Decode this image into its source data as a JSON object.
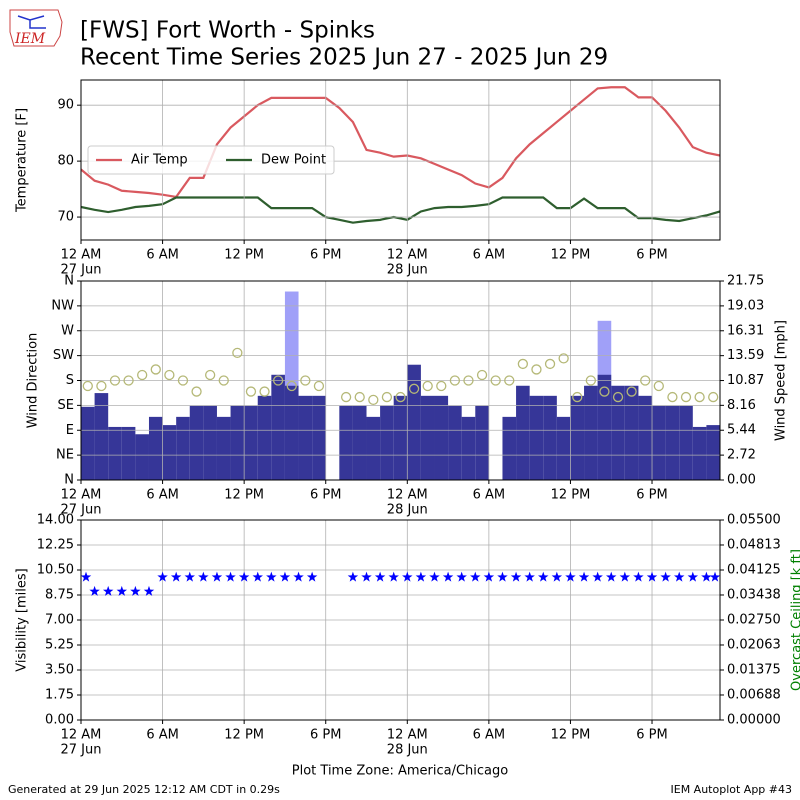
{
  "logo": "IEM",
  "title": "[FWS] Fort Worth - Spinks",
  "subtitle": "Recent Time Series 2025 Jun 27 - 2025 Jun 29",
  "xlabel": "Plot Time Zone: America/Chicago",
  "footer_left": "Generated at 29 Jun 2025 12:12 AM CDT in 0.29s",
  "footer_right": "IEM Autoplot App #43",
  "chart_data": [
    {
      "type": "line",
      "ylabel": "Temperature [F]",
      "grid": true,
      "legend": "center left",
      "x": [
        0,
        1,
        2,
        3,
        4,
        5,
        6,
        7,
        8,
        9,
        10,
        11,
        12,
        13,
        14,
        15,
        16,
        17,
        18,
        19,
        20,
        21,
        22,
        23,
        24,
        25,
        26,
        27,
        28,
        29,
        30,
        31,
        32,
        33,
        34,
        35,
        36,
        37,
        38,
        39,
        40,
        41,
        42,
        43,
        44,
        45,
        46,
        47
      ],
      "xlim": [
        0,
        47
      ],
      "xticks": [
        {
          "value": 0,
          "label": "12 AM",
          "sublabel": "27 Jun"
        },
        {
          "value": 6,
          "label": "6 AM"
        },
        {
          "value": 12,
          "label": "12 PM"
        },
        {
          "value": 18,
          "label": "6 PM"
        },
        {
          "value": 24,
          "label": "12 AM",
          "sublabel": "28 Jun"
        },
        {
          "value": 30,
          "label": "6 AM"
        },
        {
          "value": 36,
          "label": "12 PM"
        },
        {
          "value": 42,
          "label": "6 PM"
        }
      ],
      "ylim": [
        65.9,
        94.5
      ],
      "yticks": [
        70,
        80,
        90
      ],
      "series": [
        {
          "name": "Air Temp",
          "color": "#d9595f",
          "values": [
            78.5,
            76.5,
            75.8,
            74.7,
            74.5,
            74.3,
            74,
            73.6,
            77,
            77,
            83,
            86,
            88,
            90,
            91.3,
            91.3,
            91.3,
            91.3,
            91.3,
            89.5,
            87,
            82,
            81.5,
            80.8,
            81,
            80.5,
            79.5,
            78.5,
            77.5,
            76,
            75.3,
            77,
            80.5,
            83,
            85,
            87,
            89,
            91,
            93,
            93.2,
            93.2,
            91.4,
            91.4,
            89,
            86,
            82.5,
            81.5,
            81
          ]
        },
        {
          "name": "Dew Point",
          "color": "#2e5e2e",
          "values": [
            71.8,
            71.3,
            70.9,
            71.3,
            71.8,
            72,
            72.3,
            73.5,
            73.5,
            73.5,
            73.5,
            73.5,
            73.5,
            73.5,
            71.6,
            71.6,
            71.6,
            71.6,
            70,
            69.5,
            69,
            69.3,
            69.5,
            70,
            69.5,
            71,
            71.6,
            71.8,
            71.8,
            72,
            72.3,
            73.5,
            73.5,
            73.5,
            73.5,
            71.6,
            71.6,
            73.3,
            71.6,
            71.6,
            71.6,
            69.8,
            69.8,
            69.5,
            69.3,
            69.8,
            70.3,
            71
          ]
        }
      ]
    },
    {
      "type": "wind",
      "ylabel": "Wind Direction",
      "y2label": "Wind Speed [mph]",
      "grid": true,
      "x": [
        0,
        1,
        2,
        3,
        4,
        5,
        6,
        7,
        8,
        9,
        10,
        11,
        12,
        13,
        14,
        15,
        16,
        17,
        18,
        19,
        20,
        21,
        22,
        23,
        24,
        25,
        26,
        27,
        28,
        29,
        30,
        31,
        32,
        33,
        34,
        35,
        36,
        37,
        38,
        39,
        40,
        41,
        42,
        43,
        44,
        45,
        46
      ],
      "xlim": [
        0,
        47
      ],
      "xticks": [
        {
          "value": 0,
          "label": "12 AM",
          "sublabel": "27 Jun"
        },
        {
          "value": 6,
          "label": "6 AM"
        },
        {
          "value": 12,
          "label": "12 PM"
        },
        {
          "value": 18,
          "label": "6 PM"
        },
        {
          "value": 24,
          "label": "12 AM",
          "sublabel": "28 Jun"
        },
        {
          "value": 30,
          "label": "6 AM"
        },
        {
          "value": 36,
          "label": "12 PM"
        },
        {
          "value": 42,
          "label": "6 PM"
        }
      ],
      "ylim": [
        0,
        360
      ],
      "yticks": [
        {
          "value": 0,
          "label": "N"
        },
        {
          "value": 45,
          "label": "NE"
        },
        {
          "value": 90,
          "label": "E"
        },
        {
          "value": 135,
          "label": "SE"
        },
        {
          "value": 180,
          "label": "S"
        },
        {
          "value": 225,
          "label": "SW"
        },
        {
          "value": 270,
          "label": "W"
        },
        {
          "value": 315,
          "label": "NW"
        },
        {
          "value": 360,
          "label": "N"
        }
      ],
      "y2lim": [
        0,
        21.75
      ],
      "y2ticks": [
        {
          "value": 0,
          "label": "0.00"
        },
        2.72,
        5.44,
        8.16,
        10.87,
        13.59,
        16.31,
        19.03,
        21.75
      ],
      "series": [
        {
          "kind": "bar",
          "axis": "y2",
          "color": "#a0a0f8",
          "values": [
            null,
            null,
            null,
            null,
            null,
            null,
            null,
            null,
            null,
            null,
            null,
            null,
            null,
            null,
            null,
            20.6,
            null,
            null,
            null,
            null,
            null,
            null,
            null,
            null,
            null,
            null,
            null,
            null,
            null,
            null,
            null,
            null,
            null,
            null,
            null,
            null,
            null,
            null,
            17.4,
            null,
            null,
            null,
            null,
            null,
            null,
            null,
            null
          ]
        },
        {
          "kind": "bar",
          "axis": "y2",
          "color": "#363698",
          "values": [
            8,
            9.5,
            5.8,
            5.8,
            5,
            6.9,
            6,
            6.9,
            8.1,
            8.1,
            6.9,
            8.1,
            8.1,
            9.2,
            11.5,
            10.3,
            9.2,
            9.2,
            null,
            8.1,
            8.1,
            6.9,
            8.1,
            9.2,
            12.6,
            9.2,
            9.2,
            8.1,
            6.9,
            8.1,
            null,
            6.9,
            10.3,
            9.2,
            9.2,
            6.9,
            9.2,
            10.3,
            11.5,
            10.3,
            10.3,
            9.2,
            8.1,
            8.1,
            8.1,
            5.8,
            6
          ]
        },
        {
          "kind": "circle",
          "color": "#b5b877",
          "values": [
            170,
            170,
            180,
            180,
            190,
            200,
            190,
            180,
            160,
            190,
            180,
            230,
            160,
            160,
            180,
            170,
            180,
            170,
            null,
            150,
            150,
            145,
            150,
            150,
            165,
            170,
            170,
            180,
            180,
            190,
            180,
            180,
            210,
            200,
            210,
            220,
            150,
            180,
            160,
            150,
            160,
            180,
            170,
            150,
            150,
            150,
            150
          ]
        }
      ]
    },
    {
      "type": "scatter",
      "ylabel": "Visibility [miles]",
      "y2label": "Overcast Ceiling [k ft]",
      "y2label_color": "#008000",
      "grid": true,
      "marker": "star",
      "x": [
        0,
        1,
        2,
        3,
        4,
        5,
        6,
        7,
        8,
        9,
        10,
        11,
        12,
        13,
        14,
        15,
        16,
        17,
        18,
        19,
        20,
        21,
        22,
        23,
        24,
        25,
        26,
        27,
        28,
        29,
        30,
        31,
        32,
        33,
        34,
        35,
        36,
        37,
        38,
        39,
        40,
        41,
        42,
        43,
        44,
        45,
        46,
        47
      ],
      "xlim": [
        0,
        47
      ],
      "xticks": [
        {
          "value": 0,
          "label": "12 AM",
          "sublabel": "27 Jun"
        },
        {
          "value": 6,
          "label": "6 AM"
        },
        {
          "value": 12,
          "label": "12 PM"
        },
        {
          "value": 18,
          "label": "6 PM"
        },
        {
          "value": 24,
          "label": "12 AM",
          "sublabel": "28 Jun"
        },
        {
          "value": 30,
          "label": "6 AM"
        },
        {
          "value": 36,
          "label": "12 PM"
        },
        {
          "value": 42,
          "label": "6 PM"
        }
      ],
      "ylim": [
        0,
        14
      ],
      "yticks": [
        {
          "value": 0,
          "label": "0.00"
        },
        1.75,
        {
          "value": 3.5,
          "label": "3.50"
        },
        5.25,
        {
          "value": 7,
          "label": "7.00"
        },
        8.75,
        {
          "value": 10.5,
          "label": "10.50"
        },
        12.25,
        {
          "value": 14,
          "label": "14.00"
        }
      ],
      "y2lim": [
        0,
        0.055
      ],
      "y2ticks": [
        {
          "value": 0,
          "label": "0.00000"
        },
        {
          "value": 0.00688,
          "label": "0.00688"
        },
        {
          "value": 0.01375,
          "label": "0.01375"
        },
        {
          "value": 0.02063,
          "label": "0.02063"
        },
        {
          "value": 0.0275,
          "label": "0.02750"
        },
        {
          "value": 0.03438,
          "label": "0.03438"
        },
        {
          "value": 0.04125,
          "label": "0.04125"
        },
        {
          "value": 0.04813,
          "label": "0.04813"
        },
        {
          "value": 0.055,
          "label": "0.05500"
        }
      ],
      "series": [
        {
          "color": "#0000ff",
          "values": [
            10,
            9,
            9,
            9,
            9,
            9,
            10,
            10,
            10,
            10,
            10,
            10,
            10,
            10,
            10,
            10,
            10,
            10,
            null,
            null,
            10,
            10,
            10,
            10,
            10,
            10,
            10,
            10,
            10,
            10,
            10,
            10,
            10,
            10,
            10,
            10,
            10,
            10,
            10,
            10,
            10,
            10,
            10,
            10,
            10,
            10,
            10,
            10
          ]
        }
      ]
    }
  ]
}
